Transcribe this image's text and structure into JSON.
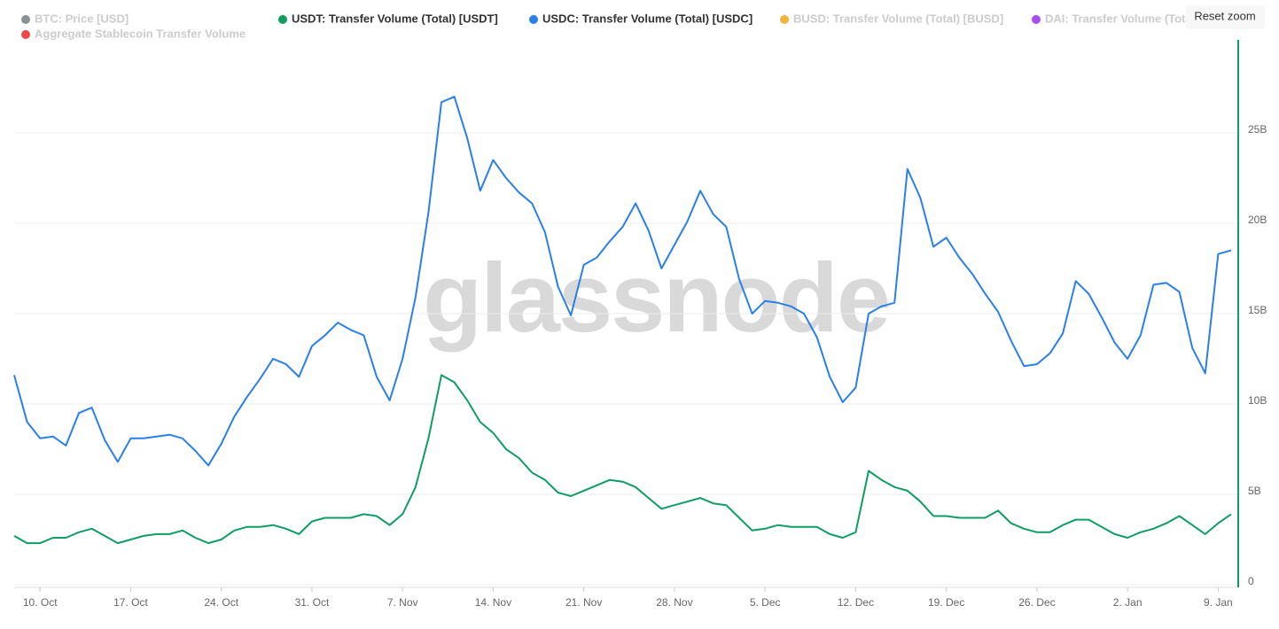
{
  "chart_data": {
    "type": "line",
    "watermark": "glassnode",
    "button": "Reset zoom",
    "categories": [
      null,
      null,
      "10. Oct",
      null,
      null,
      null,
      null,
      null,
      null,
      "17. Oct",
      null,
      null,
      null,
      null,
      null,
      null,
      "24. Oct",
      null,
      null,
      null,
      null,
      null,
      null,
      "31. Oct",
      null,
      null,
      null,
      null,
      null,
      null,
      "7. Nov",
      null,
      null,
      null,
      null,
      null,
      null,
      "14. Nov",
      null,
      null,
      null,
      null,
      null,
      null,
      "21. Nov",
      null,
      null,
      null,
      null,
      null,
      null,
      "28. Nov",
      null,
      null,
      null,
      null,
      null,
      null,
      "5. Dec",
      null,
      null,
      null,
      null,
      null,
      null,
      "12. Dec",
      null,
      null,
      null,
      null,
      null,
      null,
      "19. Dec",
      null,
      null,
      null,
      null,
      null,
      null,
      "26. Dec",
      null,
      null,
      null,
      null,
      null,
      null,
      "2. Jan",
      null,
      null,
      null,
      null,
      null,
      null,
      "9. Jan",
      null
    ],
    "series": [
      {
        "name": "BTC: Price [USD]",
        "color": "#8a9296",
        "hidden": true
      },
      {
        "name": "USDT: Transfer Volume (Total) [USDT]",
        "color": "#0f9d64",
        "values": [
          2.7,
          2.3,
          2.3,
          2.6,
          2.6,
          2.9,
          3.1,
          2.7,
          2.3,
          2.5,
          2.7,
          2.8,
          2.8,
          3.0,
          2.6,
          2.3,
          2.5,
          3.0,
          3.2,
          3.2,
          3.3,
          3.1,
          2.8,
          3.5,
          3.7,
          3.7,
          3.7,
          3.9,
          3.8,
          3.3,
          3.9,
          5.4,
          8.1,
          11.6,
          11.2,
          10.2,
          9.0,
          8.4,
          7.5,
          7.0,
          6.2,
          5.8,
          5.1,
          4.9,
          5.2,
          5.5,
          5.8,
          5.7,
          5.4,
          4.8,
          4.2,
          4.4,
          4.6,
          4.8,
          4.5,
          4.4,
          3.7,
          3.0,
          3.1,
          3.3,
          3.2,
          3.2,
          3.2,
          2.8,
          2.6,
          2.9,
          6.3,
          5.8,
          5.4,
          5.2,
          4.6,
          3.8,
          3.8,
          3.7,
          3.7,
          3.7,
          4.1,
          3.4,
          3.1,
          2.9,
          2.9,
          3.3,
          3.6,
          3.6,
          3.2,
          2.8,
          2.6,
          2.9,
          3.1,
          3.4,
          3.8,
          3.3,
          2.8,
          3.4,
          3.9
        ]
      },
      {
        "name": "USDC: Transfer Volume (Total) [USDC]",
        "color": "#2a7fe8",
        "values": [
          11.6,
          9.0,
          8.1,
          8.2,
          7.7,
          9.5,
          9.8,
          8.0,
          6.8,
          8.1,
          8.1,
          8.2,
          8.3,
          8.1,
          7.4,
          6.6,
          7.8,
          9.3,
          10.4,
          11.4,
          12.5,
          12.2,
          11.5,
          13.2,
          13.8,
          14.5,
          14.1,
          13.8,
          11.5,
          10.2,
          12.5,
          15.9,
          20.6,
          26.7,
          27.0,
          24.7,
          21.8,
          23.5,
          22.5,
          21.7,
          21.1,
          19.5,
          16.5,
          14.9,
          17.7,
          18.1,
          19.0,
          19.8,
          21.1,
          19.6,
          17.5,
          18.8,
          20.1,
          21.8,
          20.5,
          19.8,
          16.9,
          15.0,
          15.7,
          15.6,
          15.4,
          15.0,
          13.7,
          11.5,
          10.1,
          10.9,
          15.0,
          15.4,
          15.6,
          23.0,
          21.4,
          18.7,
          19.2,
          18.1,
          17.2,
          16.1,
          15.1,
          13.5,
          12.1,
          12.2,
          12.8,
          13.9,
          16.8,
          16.1,
          14.8,
          13.4,
          12.5,
          13.8,
          16.6,
          16.7,
          16.2,
          13.1,
          11.7,
          18.3,
          18.5
        ]
      },
      {
        "name": "BUSD: Transfer Volume (Total) [BUSD]",
        "color": "#f0b43c",
        "hidden": true
      },
      {
        "name": "DAI: Transfer Volume (Total) [DAI]",
        "color": "#a64ef5",
        "hidden": true
      },
      {
        "name": "Aggregate Stablecoin Transfer Volume",
        "color": "#f04848",
        "hidden": true
      }
    ],
    "ylim": [
      0,
      30
    ],
    "yticks": [
      0,
      {
        "value": 5,
        "label": "5B"
      },
      {
        "value": 10,
        "label": "10B"
      },
      {
        "value": 15,
        "label": "15B"
      },
      {
        "value": 20,
        "label": "20B"
      },
      {
        "value": 25,
        "label": "25B"
      }
    ],
    "grid": true,
    "axis_color": "#0f9d64"
  }
}
